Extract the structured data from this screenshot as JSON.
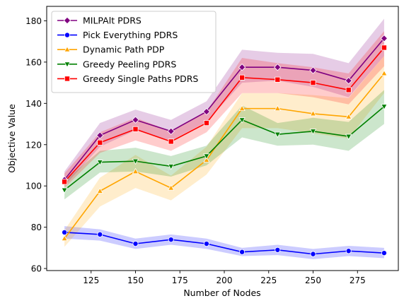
{
  "chart_data": {
    "type": "line",
    "title": "",
    "xlabel": "Number of Nodes",
    "ylabel": "Objective Value",
    "xlim": [
      100,
      298
    ],
    "ylim": [
      59,
      187
    ],
    "xticks": [
      125,
      150,
      175,
      200,
      225,
      250,
      275
    ],
    "yticks": [
      60,
      80,
      100,
      120,
      140,
      160,
      180
    ],
    "grid": false,
    "legend_position": "top-left",
    "x": [
      110,
      130,
      150,
      170,
      190,
      210,
      230,
      250,
      270,
      290
    ],
    "series": [
      {
        "name": "MILPAlt PDRS",
        "color": "#800080",
        "marker": "diamond",
        "values": [
          103,
          124.5,
          132,
          126.5,
          136,
          157.5,
          157.5,
          156,
          151,
          171.5
        ],
        "lower": [
          100,
          119,
          127,
          122,
          131,
          150,
          151,
          148,
          143,
          163
        ],
        "upper": [
          107,
          130.5,
          137,
          132,
          141,
          166,
          164.5,
          164,
          159.5,
          181
        ]
      },
      {
        "name": "Pick Everything PDRS",
        "color": "#0000ff",
        "marker": "circle",
        "values": [
          77.5,
          76.5,
          72,
          74,
          72,
          68,
          69,
          67,
          68.5,
          67.5
        ],
        "lower": [
          74.5,
          73.5,
          69.5,
          71.5,
          69.5,
          66,
          66.5,
          64.5,
          66,
          65
        ],
        "upper": [
          80.5,
          79,
          74.5,
          76.5,
          74.5,
          70,
          71.5,
          69.5,
          71,
          70
        ]
      },
      {
        "name": "Dynamic Path PDP",
        "color": "#ffa500",
        "marker": "triangle-up",
        "values": [
          74.5,
          97.5,
          107,
          99,
          112.5,
          137.5,
          137.5,
          135,
          133.5,
          154.5
        ],
        "lower": [
          70.5,
          90,
          99,
          93,
          105.5,
          128,
          128,
          125.5,
          123,
          145
        ],
        "upper": [
          78.5,
          104,
          115,
          105,
          119,
          145,
          145,
          144,
          142.5,
          163
        ]
      },
      {
        "name": "Greedy Peeling PDRS",
        "color": "#008000",
        "marker": "triangle-down",
        "values": [
          98,
          111.5,
          112,
          109.5,
          114.5,
          132,
          125,
          126.5,
          124,
          138.5
        ],
        "lower": [
          93.5,
          106.5,
          107,
          104.5,
          110,
          123.5,
          119.5,
          120,
          117,
          130
        ],
        "upper": [
          102.5,
          117,
          118.5,
          114.5,
          119.5,
          139,
          130.5,
          133,
          131,
          146.5
        ]
      },
      {
        "name": "Greedy Single Paths PDRS",
        "color": "#ff0000",
        "marker": "square",
        "values": [
          102,
          121,
          127.5,
          121.5,
          130.5,
          152.5,
          151.5,
          150,
          146.5,
          167
        ],
        "lower": [
          99,
          116,
          122,
          117,
          126,
          145,
          145,
          143,
          139.5,
          158
        ],
        "upper": [
          106,
          126,
          133,
          126.5,
          136,
          162,
          159.5,
          157.5,
          154.5,
          175
        ]
      }
    ]
  }
}
